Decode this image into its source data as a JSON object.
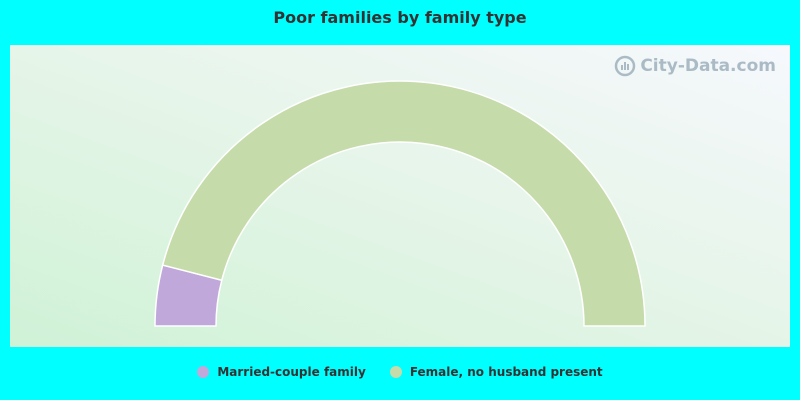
{
  "chart_data": {
    "type": "pie",
    "style": "half-donut",
    "title": "Poor families by family type",
    "series": [
      {
        "name": "Married-couple family",
        "value": 8,
        "color": "#c0a8db"
      },
      {
        "name": "Female, no husband present",
        "value": 92,
        "color": "#c5dbaa"
      }
    ],
    "legend_position": "bottom"
  },
  "watermark": {
    "text": "City-Data.com",
    "icon": "city-data-logo-icon"
  }
}
